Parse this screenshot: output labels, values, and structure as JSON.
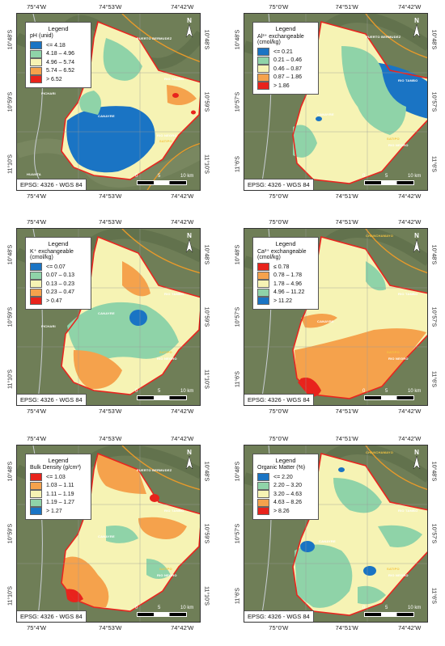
{
  "coords": {
    "top": [
      "75°4'W",
      "74°53'W",
      "74°42'W"
    ],
    "bottom": [
      "75°4'W",
      "74°53'W",
      "74°42'W"
    ],
    "left": [
      "10°48'S",
      "10°59'S",
      "11°10'S"
    ],
    "right": [
      "10°48'S",
      "10°59'S",
      "11°10'S"
    ],
    "top_alt": [
      "75°0'W",
      "74°51'W",
      "74°42'W"
    ],
    "bottom_alt": [
      "75°0'W",
      "74°51'W",
      "74°42'W"
    ],
    "left_alt": [
      "10°48'S",
      "10°57'S",
      "11°6'S"
    ],
    "right_alt": [
      "10°48'S",
      "10°57'S",
      "11°6'S"
    ]
  },
  "epsg": "EPSG: 4326 - WGS 84",
  "north_label": "N",
  "scale": {
    "zero": "0",
    "mid": "5",
    "end": "10 km"
  },
  "places": {
    "puerto_bermudez": "PUERTO BERMUDEZ",
    "rio_tambo": "RIO TAMBO",
    "pichari": "PICHARI",
    "canayre": "CANAYRE",
    "satipo": "SATIPO",
    "rio_negro": "RIO NEGRO",
    "chanchamayo": "CHANCHAMAYO",
    "huanta": "HUANTA"
  },
  "colors": {
    "outline": "#e8251f",
    "road": "#e89a2a",
    "river": "#c9ced4"
  },
  "maps": [
    {
      "legend_title": "Legend",
      "legend_subtitle": "pH (unid)",
      "classes": [
        {
          "label": "<= 4.18",
          "color": "#1a74c4"
        },
        {
          "label": "4.18 – 4.96",
          "color": "#8fd3a8"
        },
        {
          "label": "4.96 – 5.74",
          "color": "#f6f3b4"
        },
        {
          "label": "5.74 – 6.52",
          "color": "#f5a24c"
        },
        {
          "label": "> 6.52",
          "color": "#e8231c"
        }
      ]
    },
    {
      "legend_title": "Legend",
      "legend_subtitle": "Al³⁺ exchangeable",
      "legend_subtitle2": "(cmol/kg)",
      "classes": [
        {
          "label": "<= 0.21",
          "color": "#1a74c4"
        },
        {
          "label": "0.21 – 0.46",
          "color": "#8fd3a8"
        },
        {
          "label": "0.46 – 0.87",
          "color": "#f6f3b4"
        },
        {
          "label": "0.87 – 1.86",
          "color": "#f5a24c"
        },
        {
          "label": "> 1.86",
          "color": "#e8231c"
        }
      ]
    },
    {
      "legend_title": "Legend",
      "legend_subtitle": "K⁺ exchangeable",
      "legend_subtitle2": "(cmol/kg)",
      "classes": [
        {
          "label": "<= 0.07",
          "color": "#1a74c4"
        },
        {
          "label": "0.07 – 0.13",
          "color": "#8fd3a8"
        },
        {
          "label": "0.13 – 0.23",
          "color": "#f6f3b4"
        },
        {
          "label": "0.23 – 0.47",
          "color": "#f5a24c"
        },
        {
          "label": "> 0.47",
          "color": "#e8231c"
        }
      ]
    },
    {
      "legend_title": "Legend",
      "legend_subtitle": "Ca²⁺ exchangeable",
      "legend_subtitle2": "(cmol/kg)",
      "classes": [
        {
          "label": "≤ 0.78",
          "color": "#e8231c"
        },
        {
          "label": "0.78 – 1.78",
          "color": "#f5a24c"
        },
        {
          "label": "1.78 – 4.96",
          "color": "#f6f3b4"
        },
        {
          "label": "4.96 – 11.22",
          "color": "#8fd3a8"
        },
        {
          "label": "> 11.22",
          "color": "#1a74c4"
        }
      ]
    },
    {
      "legend_title": "Legend",
      "legend_subtitle": "Bulk Density (g/cm³)",
      "classes": [
        {
          "label": "<= 1.03",
          "color": "#e8231c"
        },
        {
          "label": "1.03 – 1.11",
          "color": "#f5a24c"
        },
        {
          "label": "1.11 – 1.19",
          "color": "#f6f3b4"
        },
        {
          "label": "1.19 – 1.27",
          "color": "#8fd3a8"
        },
        {
          "label": "> 1.27",
          "color": "#1a74c4"
        }
      ]
    },
    {
      "legend_title": "Legend",
      "legend_subtitle": "Organic Matter (%)",
      "classes": [
        {
          "label": "<= 2.20",
          "color": "#1a74c4"
        },
        {
          "label": "2.20 – 3.20",
          "color": "#8fd3a8"
        },
        {
          "label": "3.20 – 4.63",
          "color": "#f6f3b4"
        },
        {
          "label": "4.63 – 8.26",
          "color": "#f5a24c"
        },
        {
          "label": "> 8.26",
          "color": "#e8231c"
        }
      ]
    }
  ]
}
